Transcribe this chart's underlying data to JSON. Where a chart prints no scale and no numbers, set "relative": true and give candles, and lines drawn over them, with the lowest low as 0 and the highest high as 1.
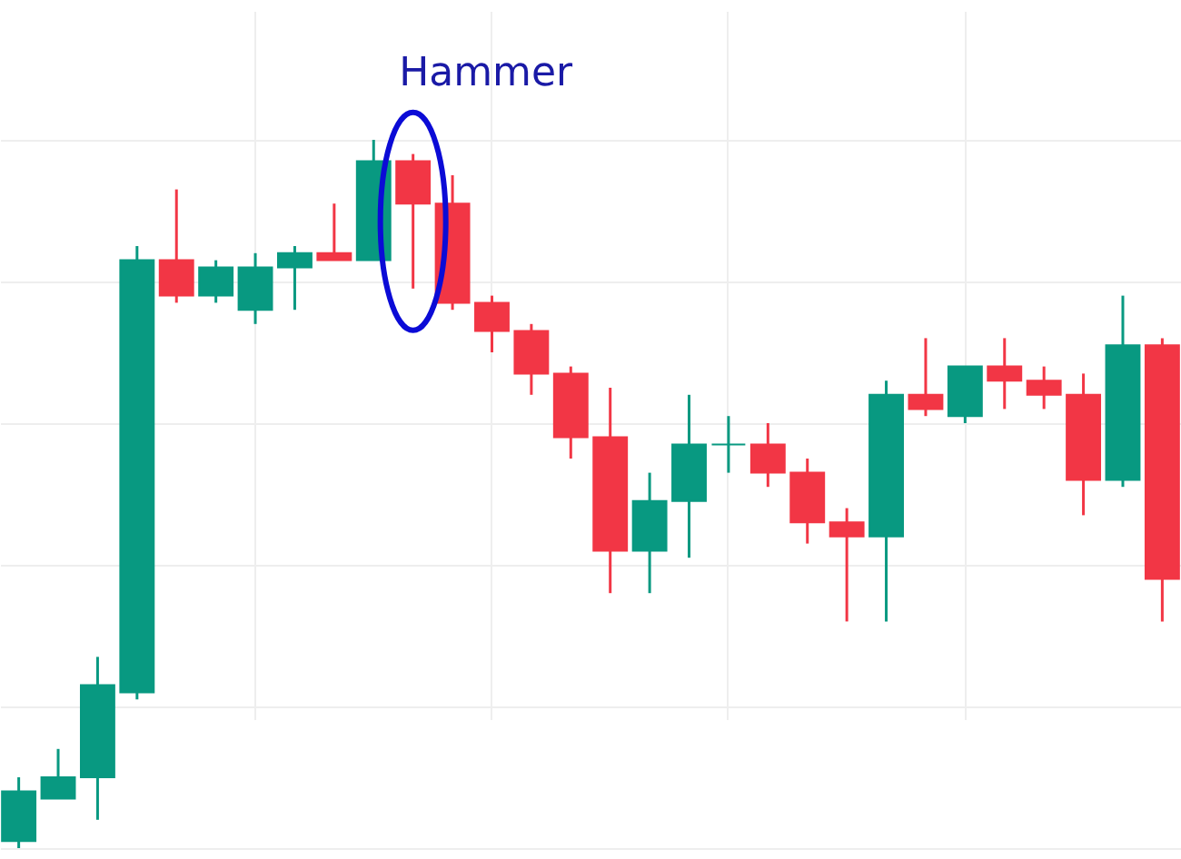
{
  "chart_data": {
    "type": "candlestick",
    "relative": true,
    "grid": true,
    "annotations": [
      "Hammer"
    ],
    "categories": [
      null,
      null,
      null,
      null,
      null,
      null,
      null,
      null,
      null,
      null,
      null,
      null,
      null,
      null,
      null,
      null,
      null,
      null,
      null,
      null,
      null,
      null,
      null,
      null,
      null,
      null,
      null,
      null,
      null,
      null
    ],
    "ohlc": [
      [
        0.01,
        0.1,
        0,
        0.08
      ],
      [
        0.07,
        0.14,
        0.07,
        0.1
      ],
      [
        0.1,
        0.27,
        0.04,
        0.23
      ],
      [
        0.22,
        0.85,
        0.21,
        0.83
      ],
      [
        0.83,
        0.93,
        0.77,
        0.78
      ],
      [
        0.78,
        0.83,
        0.77,
        0.82
      ],
      [
        0.76,
        0.84,
        0.74,
        0.82
      ],
      [
        0.82,
        0.85,
        0.76,
        0.84
      ],
      [
        0.84,
        0.91,
        0.83,
        0.83
      ],
      [
        0.83,
        1,
        0.83,
        0.97
      ],
      [
        0.97,
        0.98,
        0.79,
        0.91
      ],
      [
        0.91,
        0.95,
        0.76,
        0.77
      ],
      [
        0.77,
        0.78,
        0.7,
        0.73
      ],
      [
        0.73,
        0.74,
        0.64,
        0.67
      ],
      [
        0.67,
        0.68,
        0.55,
        0.58
      ],
      [
        0.58,
        0.65,
        0.36,
        0.42
      ],
      [
        0.42,
        0.53,
        0.36,
        0.49
      ],
      [
        0.49,
        0.64,
        0.41,
        0.57
      ],
      [
        0.57,
        0.61,
        0.53,
        0.57
      ],
      [
        0.57,
        0.6,
        0.51,
        0.53
      ],
      [
        0.53,
        0.55,
        0.43,
        0.46
      ],
      [
        0.46,
        0.48,
        0.32,
        0.44
      ],
      [
        0.44,
        0.66,
        0.32,
        0.64
      ],
      [
        0.64,
        0.72,
        0.61,
        0.62
      ],
      [
        0.61,
        0.68,
        0.6,
        0.68
      ],
      [
        0.68,
        0.72,
        0.62,
        0.66
      ],
      [
        0.66,
        0.68,
        0.62,
        0.64
      ],
      [
        0.64,
        0.67,
        0.47,
        0.52
      ],
      [
        0.52,
        0.78,
        0.51,
        0.71
      ],
      [
        0.71,
        0.72,
        0.32,
        0.38
      ]
    ],
    "colors": [
      "#089981",
      "#089981",
      "#089981",
      "#089981",
      "#f23645",
      "#089981",
      "#089981",
      "#089981",
      "#f23645",
      "#089981",
      "#f23645",
      "#f23645",
      "#f23645",
      "#f23645",
      "#f23645",
      "#f23645",
      "#089981",
      "#089981",
      "#089981",
      "#f23645",
      "#f23645",
      "#f23645",
      "#089981",
      "#f23645",
      "#089981",
      "#f23645",
      "#f23645",
      "#f23645",
      "#089981",
      "#f23645"
    ]
  }
}
